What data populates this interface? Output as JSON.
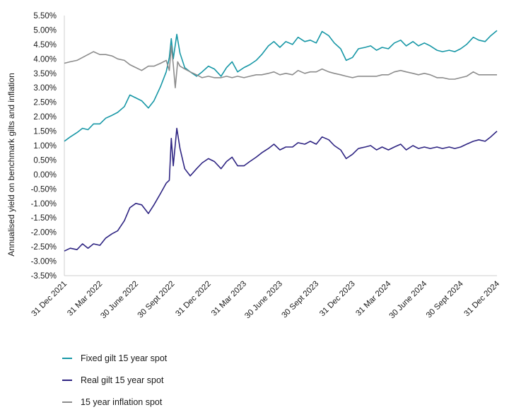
{
  "chart_data": {
    "type": "line",
    "ylabel": "Annualised yield on benchmark gilts and inflation",
    "ylim": [
      -3.5,
      5.5
    ],
    "yticks": [
      "5.50%",
      "5.00%",
      "4.50%",
      "4.00%",
      "3.50%",
      "3.00%",
      "2.50%",
      "2.00%",
      "1.50%",
      "1.00%",
      "0.50%",
      "0.00%",
      "-0.50%",
      "-1.00%",
      "-1.50%",
      "-2.00%",
      "-2.50%",
      "-3.00%",
      "-3.50%"
    ],
    "xlim": [
      "2021-12-31",
      "2024-12-31"
    ],
    "xticks": [
      {
        "date": "2021-12-31",
        "label": "31 Dec 2021"
      },
      {
        "date": "2022-03-31",
        "label": "31 Mar 2022"
      },
      {
        "date": "2022-06-30",
        "label": "30 June 2022"
      },
      {
        "date": "2022-09-30",
        "label": "30 Sept 2022"
      },
      {
        "date": "2022-12-31",
        "label": "31 Dec 2022"
      },
      {
        "date": "2023-03-31",
        "label": "31 Mar 2023"
      },
      {
        "date": "2023-06-30",
        "label": "30 June 2023"
      },
      {
        "date": "2023-09-30",
        "label": "30 Sept 2023"
      },
      {
        "date": "2023-12-31",
        "label": "31 Dec 2023"
      },
      {
        "date": "2024-03-31",
        "label": "31 Mar 2024"
      },
      {
        "date": "2024-06-30",
        "label": "30 June 2024"
      },
      {
        "date": "2024-09-30",
        "label": "30 Sept 2024"
      },
      {
        "date": "2024-12-31",
        "label": "31 Dec 2024"
      }
    ],
    "grid": false,
    "legend_position": "bottom-left",
    "series": [
      {
        "name": "Fixed gilt 15 year spot",
        "color": "#1797a6",
        "points": [
          [
            "2021-12-31",
            1.15
          ],
          [
            "2022-01-15",
            1.3
          ],
          [
            "2022-02-01",
            1.45
          ],
          [
            "2022-02-15",
            1.6
          ],
          [
            "2022-03-01",
            1.55
          ],
          [
            "2022-03-15",
            1.75
          ],
          [
            "2022-03-31",
            1.75
          ],
          [
            "2022-04-15",
            1.95
          ],
          [
            "2022-05-01",
            2.05
          ],
          [
            "2022-05-15",
            2.15
          ],
          [
            "2022-06-01",
            2.35
          ],
          [
            "2022-06-15",
            2.75
          ],
          [
            "2022-06-30",
            2.65
          ],
          [
            "2022-07-15",
            2.55
          ],
          [
            "2022-08-01",
            2.3
          ],
          [
            "2022-08-15",
            2.55
          ],
          [
            "2022-09-01",
            3.05
          ],
          [
            "2022-09-15",
            3.55
          ],
          [
            "2022-09-23",
            4.05
          ],
          [
            "2022-09-28",
            4.7
          ],
          [
            "2022-10-03",
            4.0
          ],
          [
            "2022-10-12",
            4.85
          ],
          [
            "2022-10-20",
            4.2
          ],
          [
            "2022-11-01",
            3.7
          ],
          [
            "2022-11-15",
            3.55
          ],
          [
            "2022-12-01",
            3.4
          ],
          [
            "2022-12-15",
            3.55
          ],
          [
            "2022-12-31",
            3.75
          ],
          [
            "2023-01-15",
            3.65
          ],
          [
            "2023-02-01",
            3.4
          ],
          [
            "2023-02-15",
            3.7
          ],
          [
            "2023-03-01",
            3.9
          ],
          [
            "2023-03-15",
            3.55
          ],
          [
            "2023-03-31",
            3.7
          ],
          [
            "2023-04-15",
            3.8
          ],
          [
            "2023-05-01",
            3.95
          ],
          [
            "2023-05-15",
            4.15
          ],
          [
            "2023-06-01",
            4.45
          ],
          [
            "2023-06-15",
            4.6
          ],
          [
            "2023-06-30",
            4.4
          ],
          [
            "2023-07-15",
            4.6
          ],
          [
            "2023-08-01",
            4.5
          ],
          [
            "2023-08-15",
            4.75
          ],
          [
            "2023-09-01",
            4.6
          ],
          [
            "2023-09-15",
            4.65
          ],
          [
            "2023-09-30",
            4.55
          ],
          [
            "2023-10-15",
            4.95
          ],
          [
            "2023-11-01",
            4.8
          ],
          [
            "2023-11-15",
            4.55
          ],
          [
            "2023-12-01",
            4.35
          ],
          [
            "2023-12-15",
            3.95
          ],
          [
            "2023-12-31",
            4.05
          ],
          [
            "2024-01-15",
            4.35
          ],
          [
            "2024-02-01",
            4.4
          ],
          [
            "2024-02-15",
            4.45
          ],
          [
            "2024-03-01",
            4.3
          ],
          [
            "2024-03-15",
            4.4
          ],
          [
            "2024-03-31",
            4.35
          ],
          [
            "2024-04-15",
            4.55
          ],
          [
            "2024-05-01",
            4.65
          ],
          [
            "2024-05-15",
            4.45
          ],
          [
            "2024-06-01",
            4.6
          ],
          [
            "2024-06-15",
            4.45
          ],
          [
            "2024-06-30",
            4.55
          ],
          [
            "2024-07-15",
            4.45
          ],
          [
            "2024-08-01",
            4.3
          ],
          [
            "2024-08-15",
            4.25
          ],
          [
            "2024-09-01",
            4.3
          ],
          [
            "2024-09-15",
            4.25
          ],
          [
            "2024-09-30",
            4.35
          ],
          [
            "2024-10-15",
            4.5
          ],
          [
            "2024-11-01",
            4.75
          ],
          [
            "2024-11-15",
            4.65
          ],
          [
            "2024-12-01",
            4.6
          ],
          [
            "2024-12-15",
            4.8
          ],
          [
            "2024-12-31",
            4.98
          ]
        ]
      },
      {
        "name": "Real gilt 15 year spot",
        "color": "#2e2482",
        "points": [
          [
            "2021-12-31",
            -2.65
          ],
          [
            "2022-01-15",
            -2.55
          ],
          [
            "2022-02-01",
            -2.6
          ],
          [
            "2022-02-15",
            -2.4
          ],
          [
            "2022-03-01",
            -2.55
          ],
          [
            "2022-03-15",
            -2.4
          ],
          [
            "2022-03-31",
            -2.45
          ],
          [
            "2022-04-15",
            -2.2
          ],
          [
            "2022-05-01",
            -2.05
          ],
          [
            "2022-05-15",
            -1.95
          ],
          [
            "2022-06-01",
            -1.6
          ],
          [
            "2022-06-15",
            -1.15
          ],
          [
            "2022-06-30",
            -1.0
          ],
          [
            "2022-07-15",
            -1.05
          ],
          [
            "2022-08-01",
            -1.35
          ],
          [
            "2022-08-15",
            -1.05
          ],
          [
            "2022-09-01",
            -0.65
          ],
          [
            "2022-09-15",
            -0.3
          ],
          [
            "2022-09-23",
            -0.2
          ],
          [
            "2022-09-28",
            1.25
          ],
          [
            "2022-10-03",
            0.3
          ],
          [
            "2022-10-12",
            1.6
          ],
          [
            "2022-10-20",
            0.9
          ],
          [
            "2022-11-01",
            0.2
          ],
          [
            "2022-11-15",
            -0.05
          ],
          [
            "2022-12-01",
            0.2
          ],
          [
            "2022-12-15",
            0.4
          ],
          [
            "2022-12-31",
            0.55
          ],
          [
            "2023-01-15",
            0.45
          ],
          [
            "2023-02-01",
            0.2
          ],
          [
            "2023-02-15",
            0.45
          ],
          [
            "2023-03-01",
            0.6
          ],
          [
            "2023-03-15",
            0.3
          ],
          [
            "2023-03-31",
            0.3
          ],
          [
            "2023-04-15",
            0.45
          ],
          [
            "2023-05-01",
            0.6
          ],
          [
            "2023-05-15",
            0.75
          ],
          [
            "2023-06-01",
            0.9
          ],
          [
            "2023-06-15",
            1.05
          ],
          [
            "2023-06-30",
            0.85
          ],
          [
            "2023-07-15",
            0.95
          ],
          [
            "2023-08-01",
            0.95
          ],
          [
            "2023-08-15",
            1.1
          ],
          [
            "2023-09-01",
            1.05
          ],
          [
            "2023-09-15",
            1.15
          ],
          [
            "2023-09-30",
            1.05
          ],
          [
            "2023-10-15",
            1.3
          ],
          [
            "2023-11-01",
            1.2
          ],
          [
            "2023-11-15",
            1.0
          ],
          [
            "2023-12-01",
            0.85
          ],
          [
            "2023-12-15",
            0.55
          ],
          [
            "2023-12-31",
            0.7
          ],
          [
            "2024-01-15",
            0.9
          ],
          [
            "2024-02-01",
            0.95
          ],
          [
            "2024-02-15",
            1.0
          ],
          [
            "2024-03-01",
            0.85
          ],
          [
            "2024-03-15",
            0.95
          ],
          [
            "2024-03-31",
            0.85
          ],
          [
            "2024-04-15",
            0.95
          ],
          [
            "2024-05-01",
            1.05
          ],
          [
            "2024-05-15",
            0.85
          ],
          [
            "2024-06-01",
            1.0
          ],
          [
            "2024-06-15",
            0.9
          ],
          [
            "2024-06-30",
            0.95
          ],
          [
            "2024-07-15",
            0.9
          ],
          [
            "2024-08-01",
            0.95
          ],
          [
            "2024-08-15",
            0.9
          ],
          [
            "2024-09-01",
            0.95
          ],
          [
            "2024-09-15",
            0.9
          ],
          [
            "2024-09-30",
            0.95
          ],
          [
            "2024-10-15",
            1.05
          ],
          [
            "2024-11-01",
            1.15
          ],
          [
            "2024-11-15",
            1.2
          ],
          [
            "2024-12-01",
            1.15
          ],
          [
            "2024-12-15",
            1.3
          ],
          [
            "2024-12-31",
            1.5
          ]
        ]
      },
      {
        "name": "15 year inflation spot",
        "color": "#8c8c8c",
        "points": [
          [
            "2021-12-31",
            3.85
          ],
          [
            "2022-01-15",
            3.9
          ],
          [
            "2022-02-01",
            3.95
          ],
          [
            "2022-02-15",
            4.05
          ],
          [
            "2022-03-01",
            4.15
          ],
          [
            "2022-03-15",
            4.25
          ],
          [
            "2022-03-31",
            4.15
          ],
          [
            "2022-04-15",
            4.15
          ],
          [
            "2022-05-01",
            4.1
          ],
          [
            "2022-05-15",
            4.0
          ],
          [
            "2022-06-01",
            3.95
          ],
          [
            "2022-06-15",
            3.8
          ],
          [
            "2022-06-30",
            3.7
          ],
          [
            "2022-07-15",
            3.6
          ],
          [
            "2022-08-01",
            3.75
          ],
          [
            "2022-08-15",
            3.75
          ],
          [
            "2022-09-01",
            3.85
          ],
          [
            "2022-09-15",
            3.95
          ],
          [
            "2022-09-23",
            3.6
          ],
          [
            "2022-09-28",
            4.45
          ],
          [
            "2022-10-03",
            3.8
          ],
          [
            "2022-10-08",
            3.0
          ],
          [
            "2022-10-14",
            3.9
          ],
          [
            "2022-10-20",
            3.75
          ],
          [
            "2022-11-01",
            3.65
          ],
          [
            "2022-11-15",
            3.55
          ],
          [
            "2022-12-01",
            3.45
          ],
          [
            "2022-12-15",
            3.35
          ],
          [
            "2022-12-31",
            3.4
          ],
          [
            "2023-01-15",
            3.35
          ],
          [
            "2023-02-01",
            3.35
          ],
          [
            "2023-02-15",
            3.4
          ],
          [
            "2023-03-01",
            3.35
          ],
          [
            "2023-03-15",
            3.4
          ],
          [
            "2023-03-31",
            3.35
          ],
          [
            "2023-04-15",
            3.4
          ],
          [
            "2023-05-01",
            3.45
          ],
          [
            "2023-05-15",
            3.45
          ],
          [
            "2023-06-01",
            3.5
          ],
          [
            "2023-06-15",
            3.55
          ],
          [
            "2023-06-30",
            3.45
          ],
          [
            "2023-07-15",
            3.5
          ],
          [
            "2023-08-01",
            3.45
          ],
          [
            "2023-08-15",
            3.6
          ],
          [
            "2023-09-01",
            3.5
          ],
          [
            "2023-09-15",
            3.55
          ],
          [
            "2023-09-30",
            3.55
          ],
          [
            "2023-10-15",
            3.65
          ],
          [
            "2023-11-01",
            3.55
          ],
          [
            "2023-11-15",
            3.5
          ],
          [
            "2023-12-01",
            3.45
          ],
          [
            "2023-12-15",
            3.4
          ],
          [
            "2023-12-31",
            3.35
          ],
          [
            "2024-01-15",
            3.4
          ],
          [
            "2024-02-01",
            3.4
          ],
          [
            "2024-02-15",
            3.4
          ],
          [
            "2024-03-01",
            3.4
          ],
          [
            "2024-03-15",
            3.45
          ],
          [
            "2024-03-31",
            3.45
          ],
          [
            "2024-04-15",
            3.55
          ],
          [
            "2024-05-01",
            3.6
          ],
          [
            "2024-05-15",
            3.55
          ],
          [
            "2024-06-01",
            3.5
          ],
          [
            "2024-06-15",
            3.45
          ],
          [
            "2024-06-30",
            3.5
          ],
          [
            "2024-07-15",
            3.45
          ],
          [
            "2024-08-01",
            3.35
          ],
          [
            "2024-08-15",
            3.35
          ],
          [
            "2024-09-01",
            3.3
          ],
          [
            "2024-09-15",
            3.3
          ],
          [
            "2024-09-30",
            3.35
          ],
          [
            "2024-10-15",
            3.4
          ],
          [
            "2024-11-01",
            3.55
          ],
          [
            "2024-11-15",
            3.45
          ],
          [
            "2024-12-01",
            3.45
          ],
          [
            "2024-12-15",
            3.45
          ],
          [
            "2024-12-31",
            3.45
          ]
        ]
      }
    ]
  }
}
